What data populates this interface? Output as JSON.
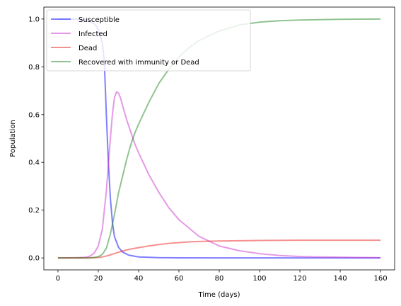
{
  "chart_data": {
    "type": "line",
    "title": "",
    "xlabel": "Time (days)",
    "ylabel": "Population",
    "xlim": [
      -7,
      167
    ],
    "ylim": [
      -0.05,
      1.05
    ],
    "xticks": [
      0,
      20,
      40,
      60,
      80,
      100,
      120,
      140,
      160
    ],
    "yticks": [
      0.0,
      0.2,
      0.4,
      0.6,
      0.8,
      1.0
    ],
    "xtick_labels": [
      "0",
      "20",
      "40",
      "60",
      "80",
      "100",
      "120",
      "140",
      "160"
    ],
    "ytick_labels": [
      "0.0",
      "0.2",
      "0.4",
      "0.6",
      "0.8",
      "1.0"
    ],
    "grid": false,
    "legend_placement": "top-left",
    "series": [
      {
        "name": "Susceptible",
        "color": "#0000ff",
        "x": [
          0,
          10,
          14,
          16,
          18,
          19,
          20,
          21,
          22,
          23,
          24,
          25,
          26,
          27,
          28,
          30,
          32,
          35,
          40,
          50,
          60,
          80,
          100,
          120,
          140,
          160
        ],
        "y": [
          1.0,
          0.999,
          0.995,
          0.99,
          0.98,
          0.97,
          0.955,
          0.93,
          0.9,
          0.82,
          0.6,
          0.4,
          0.25,
          0.15,
          0.09,
          0.045,
          0.025,
          0.012,
          0.004,
          0.001,
          0.0005,
          0.0,
          0.0,
          0.0,
          0.0,
          0.0
        ]
      },
      {
        "name": "Infected",
        "color": "#cc33cc",
        "x": [
          0,
          10,
          14,
          16,
          18,
          20,
          22,
          24,
          26,
          27,
          28,
          29,
          30,
          31,
          32,
          34,
          36,
          38,
          40,
          45,
          50,
          55,
          60,
          70,
          80,
          90,
          100,
          110,
          120,
          130,
          140,
          150,
          160
        ],
        "y": [
          0.0,
          0.001,
          0.003,
          0.008,
          0.02,
          0.05,
          0.12,
          0.28,
          0.5,
          0.6,
          0.67,
          0.695,
          0.69,
          0.67,
          0.64,
          0.58,
          0.53,
          0.48,
          0.44,
          0.35,
          0.275,
          0.21,
          0.16,
          0.09,
          0.05,
          0.03,
          0.018,
          0.01,
          0.006,
          0.004,
          0.003,
          0.002,
          0.001
        ]
      },
      {
        "name": "Dead",
        "color": "#ee2222",
        "x": [
          0,
          15,
          18,
          20,
          22,
          24,
          26,
          28,
          30,
          32,
          34,
          36,
          40,
          45,
          50,
          55,
          60,
          65,
          70,
          80,
          90,
          100,
          120,
          140,
          160
        ],
        "y": [
          0.0,
          0.0,
          0.001,
          0.002,
          0.004,
          0.008,
          0.013,
          0.018,
          0.024,
          0.029,
          0.033,
          0.037,
          0.043,
          0.05,
          0.056,
          0.061,
          0.064,
          0.067,
          0.069,
          0.071,
          0.072,
          0.073,
          0.074,
          0.074,
          0.074
        ]
      },
      {
        "name": "Recovered with immunity or Dead",
        "color": "#228822",
        "x": [
          0,
          15,
          18,
          20,
          22,
          24,
          26,
          28,
          30,
          32,
          34,
          36,
          38,
          40,
          45,
          50,
          55,
          60,
          65,
          70,
          80,
          90,
          100,
          110,
          120,
          140,
          160
        ],
        "y": [
          0.0,
          0.0,
          0.002,
          0.005,
          0.015,
          0.04,
          0.1,
          0.18,
          0.27,
          0.34,
          0.41,
          0.47,
          0.52,
          0.56,
          0.65,
          0.73,
          0.79,
          0.84,
          0.88,
          0.91,
          0.95,
          0.975,
          0.987,
          0.993,
          0.996,
          0.999,
          1.0
        ]
      }
    ]
  }
}
